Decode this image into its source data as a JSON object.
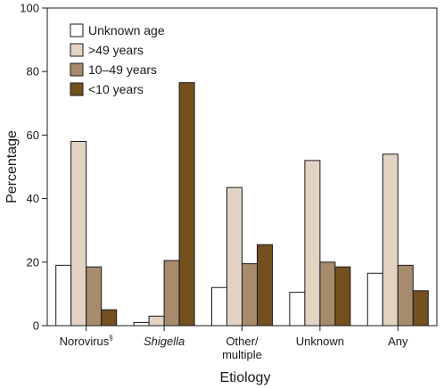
{
  "chart_data": {
    "type": "bar",
    "xlabel": "Etiology",
    "ylabel": "Percentage",
    "ylim": [
      0,
      100
    ],
    "yticks": [
      0,
      20,
      40,
      60,
      80,
      100
    ],
    "grid": false,
    "legend_position": "top-left",
    "categories": [
      {
        "label": "Norovirus",
        "superscript": "§",
        "italic": false
      },
      {
        "label": "Shigella",
        "italic": true
      },
      {
        "label": "Other/\nmultiple",
        "italic": false
      },
      {
        "label": "Unknown",
        "italic": false
      },
      {
        "label": "Any",
        "italic": false
      }
    ],
    "series": [
      {
        "name": "Unknown age",
        "color": "#ffffff",
        "values": [
          19,
          1,
          12,
          10.5,
          16.5
        ]
      },
      {
        "name": ">49 years",
        "color": "#e2d3c3",
        "values": [
          58,
          3,
          43.5,
          52,
          54
        ]
      },
      {
        "name": "10–49 years",
        "color": "#a68b6c",
        "values": [
          18.5,
          20.5,
          19.5,
          20,
          19
        ]
      },
      {
        "name": "<10 years",
        "color": "#74501f",
        "values": [
          5,
          76.5,
          25.5,
          18.5,
          11
        ]
      }
    ]
  }
}
